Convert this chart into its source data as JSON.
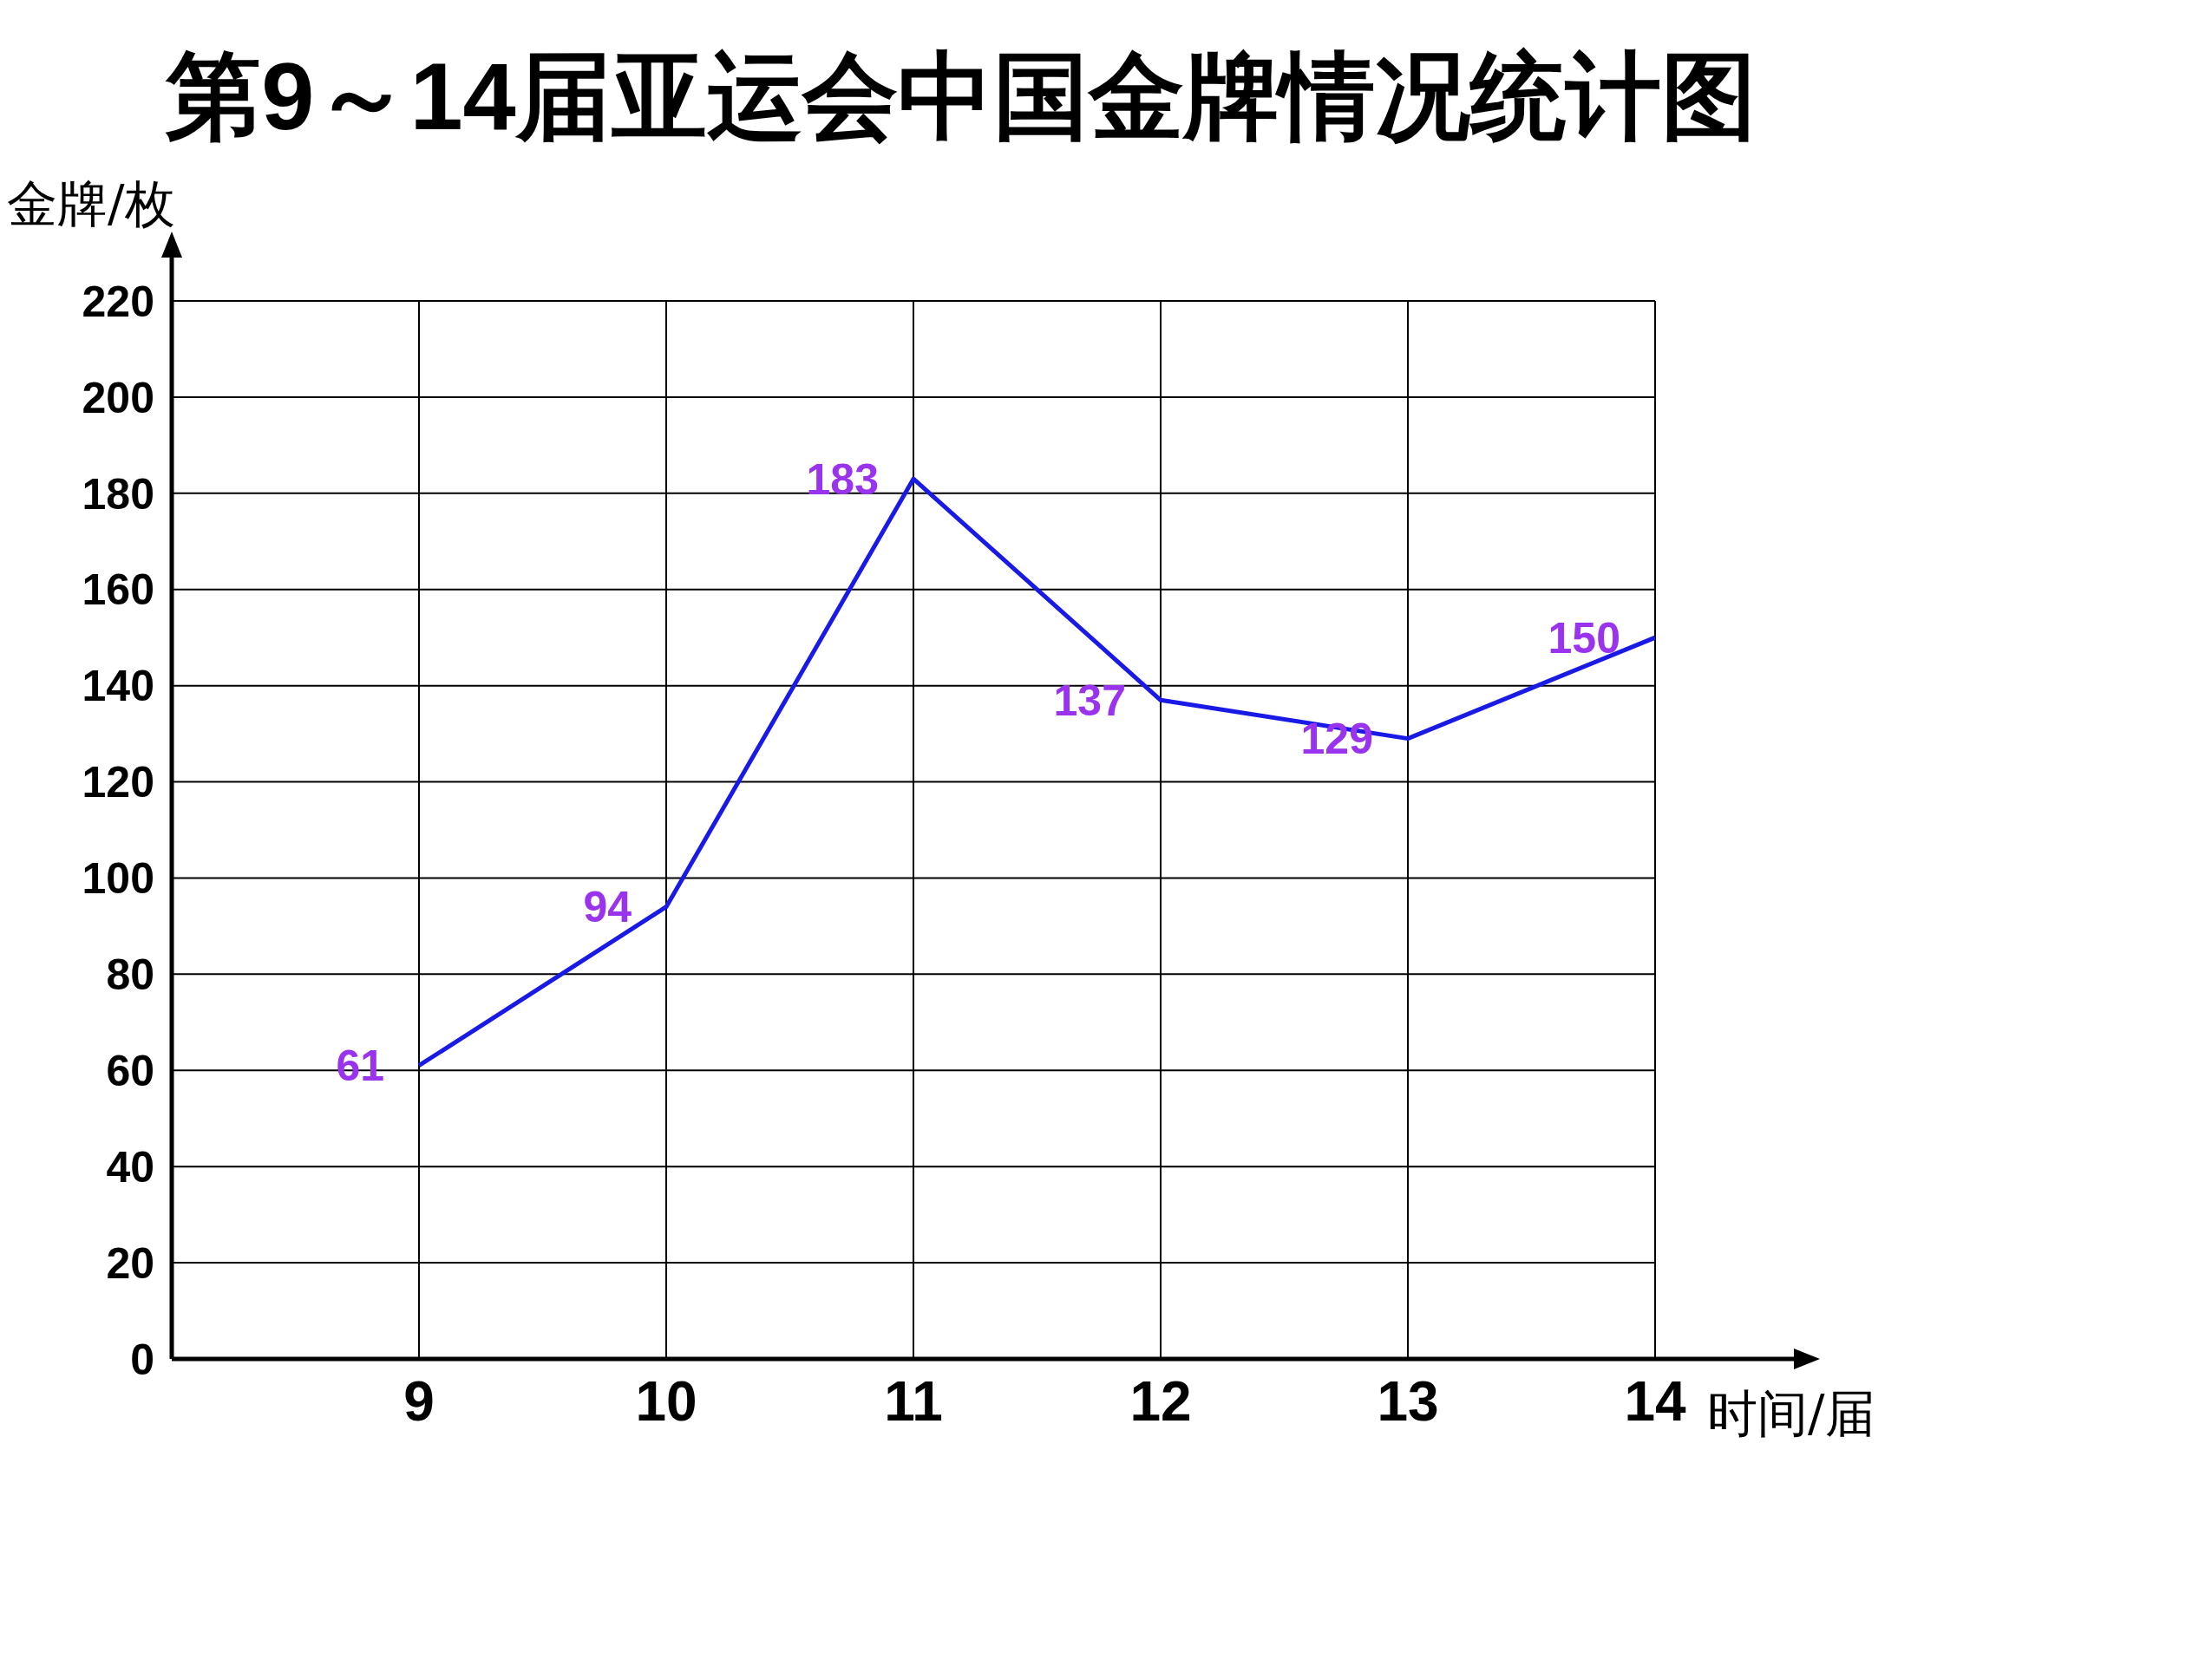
{
  "chart_data": {
    "type": "line",
    "title": "第9～14届亚运会中国金牌情况统计图",
    "xlabel": "时间/届",
    "ylabel": "金牌/枚",
    "x": [
      9,
      10,
      11,
      12,
      13,
      14
    ],
    "xlim": [
      8,
      14
    ],
    "xticks": [
      9,
      10,
      11,
      12,
      13,
      14
    ],
    "series": [
      {
        "color": "#1a1ae6",
        "values": [
          61,
          94,
          183,
          137,
          129,
          150
        ]
      }
    ],
    "ylim": [
      0,
      220
    ],
    "yticks": [
      0,
      20,
      40,
      60,
      80,
      100,
      120,
      140,
      160,
      180,
      200,
      220
    ],
    "grid": true,
    "data_labels": true,
    "marker": "none",
    "line_style": "solid"
  }
}
